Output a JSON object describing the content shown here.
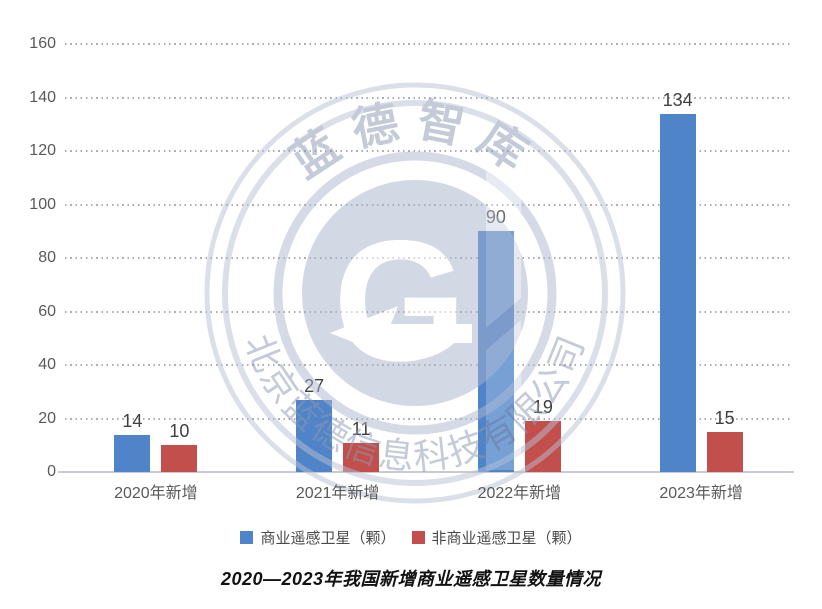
{
  "title": "2020—2023年我国新增商业遥感卫星数量情况",
  "legend": [
    {
      "label": "商业遥感卫星（颗）",
      "color": "#4f84c8"
    },
    {
      "label": "非商业遥感卫星（颗）",
      "color": "#c24f4c"
    }
  ],
  "watermark": {
    "top_text": "蓝德智库",
    "bottom_text": "北京蓝德信息科技有限公司",
    "g_letter": "G",
    "color": "#c9cfdf"
  },
  "chart_data": {
    "type": "bar",
    "categories": [
      "2020年新增",
      "2021年新增",
      "2022年新增",
      "2023年新增"
    ],
    "series": [
      {
        "name": "商业遥感卫星（颗）",
        "key": "commercial",
        "color": "#4f84c8",
        "values": [
          14,
          27,
          90,
          134
        ]
      },
      {
        "name": "非商业遥感卫星（颗）",
        "key": "non-commercial",
        "color": "#c24f4c",
        "values": [
          10,
          11,
          19,
          15
        ]
      }
    ],
    "title": "2020—2023年我国新增商业遥感卫星数量情况",
    "xlabel": "",
    "ylabel": "",
    "ylim": [
      0,
      160
    ],
    "ytick_step": 20,
    "grid": "horizontal-dotted",
    "legend_position": "bottom",
    "value_labels": "above-bars"
  }
}
